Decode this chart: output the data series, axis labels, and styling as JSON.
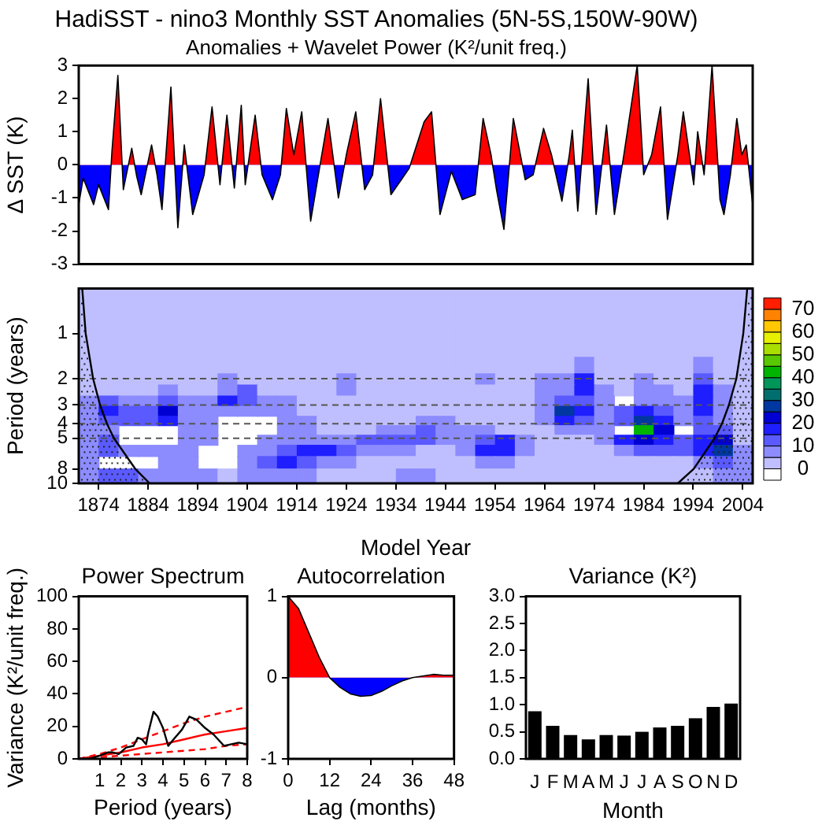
{
  "chart_data": [
    {
      "type": "area",
      "title": "HadiSST - nino3 Monthly SST Anomalies (5N-5S,150W-90W)",
      "subtitle": "Anomalies + Wavelet Power (K²/unit freq.)",
      "ylabel": "Δ SST (K)",
      "xlim": [
        1870,
        2006
      ],
      "ylim": [
        -3,
        3
      ],
      "yticks": [
        -3,
        -2,
        -1,
        0,
        1,
        2,
        3
      ],
      "tick_labels": "y",
      "x": [
        1870.0,
        1870.9,
        1873.0,
        1874.0,
        1876.0,
        1876.7,
        1877.9,
        1879.0,
        1880.7,
        1881.7,
        1882.6,
        1884.7,
        1885.8,
        1886.8,
        1888.6,
        1890.0,
        1891.3,
        1893.0,
        1895.3,
        1896.9,
        1898.5,
        1899.9,
        1901.4,
        1902.8,
        1903.6,
        1905.6,
        1907.0,
        1909.1,
        1910.7,
        1911.9,
        1913.4,
        1915.0,
        1916.8,
        1918.7,
        1920.3,
        1922.4,
        1924.0,
        1925.9,
        1927.7,
        1929.3,
        1930.9,
        1933.0,
        1935.1,
        1936.7,
        1939.7,
        1941.2,
        1942.9,
        1945.2,
        1947.4,
        1950.0,
        1951.6,
        1953.2,
        1954.3,
        1955.8,
        1957.7,
        1960.1,
        1961.7,
        1963.8,
        1965.4,
        1967.5,
        1969.0,
        1969.6,
        1970.7,
        1972.8,
        1974.4,
        1976.5,
        1978.1,
        1980.0,
        1982.7,
        1984.0,
        1985.6,
        1987.4,
        1988.8,
        1990.9,
        1992.0,
        1994.1,
        1994.9,
        1996.2,
        1997.8,
        1999.4,
        2000.2,
        2001.5,
        2002.8,
        2003.8,
        2004.7,
        2006.0
      ],
      "series": [
        {
          "color": "#000000",
          "values": [
            -1.2,
            -0.4,
            -1.2,
            -0.6,
            -1.35,
            0.4,
            2.7,
            -0.75,
            0.5,
            -0.35,
            -0.9,
            0.6,
            -0.3,
            -1.35,
            2.35,
            -1.9,
            0.6,
            -1.5,
            -0.3,
            1.75,
            -0.6,
            1.5,
            -0.7,
            1.8,
            -0.6,
            1.5,
            -0.3,
            -1.05,
            -0.3,
            1.7,
            0.3,
            1.6,
            -1.7,
            0,
            1.4,
            -1.0,
            0.3,
            1.6,
            -0.75,
            -0.3,
            2.0,
            -0.9,
            -0.45,
            -0.1,
            1.3,
            1.6,
            -1.5,
            -0.2,
            -1.05,
            -0.9,
            1.4,
            0.3,
            -0.75,
            -1.95,
            1.4,
            -0.45,
            -0.3,
            1.1,
            0.3,
            -1.1,
            0.3,
            1.05,
            -1.4,
            2.6,
            -1.5,
            1.2,
            -1.5,
            0.3,
            3.0,
            -0.3,
            0.3,
            1.75,
            -1.65,
            0.3,
            1.6,
            -0.6,
            1.0,
            -0.3,
            3.0,
            -1.05,
            -1.5,
            -0.3,
            1.4,
            0.3,
            0.6,
            -1.2
          ]
        }
      ]
    },
    {
      "type": "heatmap",
      "xlabel": "Model Year",
      "ylabel": "Period (years)",
      "clim": [
        -5,
        75
      ],
      "cticks": [
        0,
        10,
        20,
        30,
        40,
        50,
        60,
        70
      ],
      "xlim": [
        1870,
        2006
      ],
      "xticks": [
        1874,
        1884,
        1894,
        1904,
        1914,
        1924,
        1934,
        1944,
        1954,
        1964,
        1974,
        1984,
        1994,
        2004
      ],
      "ylim": [
        10,
        0.5
      ],
      "yticks": [
        1,
        2,
        3,
        4,
        5,
        8,
        10
      ],
      "log": "y",
      "x": [
        1872,
        1876,
        1880,
        1884,
        1888,
        1892,
        1896,
        1900,
        1904,
        1908,
        1912,
        1916,
        1920,
        1924,
        1928,
        1932,
        1936,
        1940,
        1944,
        1948,
        1952,
        1956,
        1960,
        1964,
        1968,
        1972,
        1976,
        1980,
        1984,
        1988,
        1992,
        1996,
        2000,
        2004
      ],
      "y": [
        0.7,
        1.2,
        1.7,
        2.0,
        2.4,
        2.8,
        3.3,
        3.8,
        4.4,
        5.1,
        6.0,
        7.2,
        8.8
      ],
      "cells": [
        [
          2,
          2,
          2,
          2,
          2,
          2,
          2,
          2,
          2,
          2,
          2,
          2,
          2,
          2,
          2,
          2,
          2,
          2,
          2,
          2,
          2,
          2,
          2,
          2,
          2,
          2,
          2,
          2,
          2,
          2,
          2,
          2,
          2,
          2
        ],
        [
          2,
          2,
          2,
          2,
          2,
          2,
          2,
          2,
          2,
          2,
          2,
          2,
          2,
          2,
          2,
          2,
          2,
          2,
          2,
          2,
          2,
          2,
          2,
          2,
          2,
          2,
          2,
          2,
          2,
          2,
          2,
          2,
          2,
          2
        ],
        [
          2,
          2,
          2,
          2,
          2,
          2,
          2,
          2,
          2,
          2,
          2,
          2,
          2,
          2,
          2,
          2,
          2,
          2,
          2,
          2,
          2,
          2,
          2,
          2,
          2,
          7,
          2,
          2,
          2,
          2,
          2,
          7,
          2,
          2
        ],
        [
          2,
          2,
          2,
          2,
          2,
          2,
          2,
          7,
          2,
          2,
          2,
          2,
          2,
          7,
          2,
          2,
          2,
          2,
          2,
          2,
          7,
          2,
          2,
          7,
          7,
          17,
          2,
          2,
          7,
          2,
          2,
          12,
          2,
          2
        ],
        [
          2,
          2,
          2,
          2,
          7,
          2,
          2,
          7,
          12,
          2,
          2,
          2,
          2,
          7,
          2,
          2,
          2,
          2,
          2,
          2,
          2,
          2,
          2,
          7,
          7,
          17,
          7,
          2,
          7,
          7,
          2,
          17,
          7,
          2
        ],
        [
          7,
          12,
          7,
          7,
          12,
          7,
          7,
          17,
          12,
          7,
          7,
          2,
          2,
          2,
          2,
          2,
          2,
          2,
          2,
          2,
          2,
          2,
          2,
          7,
          12,
          12,
          7,
          null,
          7,
          7,
          7,
          17,
          7,
          2
        ],
        [
          7,
          17,
          12,
          12,
          22,
          7,
          7,
          7,
          7,
          7,
          7,
          2,
          2,
          2,
          2,
          2,
          2,
          2,
          2,
          2,
          2,
          2,
          2,
          7,
          27,
          17,
          7,
          12,
          17,
          12,
          7,
          17,
          7,
          2
        ],
        [
          7,
          12,
          12,
          12,
          17,
          7,
          7,
          null,
          null,
          null,
          7,
          7,
          2,
          2,
          2,
          2,
          2,
          7,
          7,
          2,
          2,
          2,
          2,
          7,
          17,
          12,
          7,
          12,
          27,
          17,
          7,
          12,
          7,
          2
        ],
        [
          7,
          7,
          null,
          null,
          null,
          7,
          7,
          null,
          null,
          null,
          7,
          7,
          2,
          2,
          2,
          7,
          7,
          12,
          7,
          7,
          7,
          2,
          2,
          2,
          7,
          7,
          7,
          null,
          42,
          22,
          null,
          12,
          12,
          2
        ],
        [
          7,
          12,
          null,
          null,
          null,
          7,
          7,
          null,
          null,
          7,
          7,
          7,
          7,
          7,
          12,
          12,
          12,
          12,
          7,
          7,
          12,
          17,
          7,
          2,
          2,
          2,
          7,
          17,
          22,
          17,
          12,
          17,
          22,
          2
        ],
        [
          7,
          12,
          7,
          7,
          7,
          7,
          null,
          null,
          7,
          7,
          12,
          17,
          17,
          12,
          7,
          7,
          7,
          2,
          2,
          7,
          17,
          17,
          7,
          2,
          2,
          2,
          2,
          7,
          12,
          12,
          12,
          17,
          27,
          7
        ],
        [
          7,
          null,
          null,
          null,
          7,
          7,
          null,
          null,
          7,
          12,
          17,
          12,
          7,
          7,
          2,
          2,
          2,
          2,
          2,
          2,
          7,
          7,
          2,
          2,
          2,
          2,
          2,
          2,
          2,
          2,
          2,
          7,
          12,
          7
        ],
        [
          7,
          12,
          12,
          7,
          7,
          7,
          7,
          2,
          7,
          7,
          7,
          7,
          2,
          2,
          2,
          2,
          7,
          7,
          2,
          2,
          2,
          2,
          2,
          2,
          2,
          2,
          2,
          2,
          2,
          2,
          2,
          2,
          7,
          7
        ]
      ],
      "ref_lines": [
        {
          "axis": "y",
          "value": 2,
          "color": "#555555",
          "line_style": "dashed"
        },
        {
          "axis": "y",
          "value": 3,
          "color": "#555555",
          "line_style": "dashed"
        },
        {
          "axis": "y",
          "value": 4,
          "color": "#555555",
          "line_style": "dashed"
        },
        {
          "axis": "y",
          "value": 5,
          "color": "#555555",
          "line_style": "dashed"
        }
      ],
      "series": [
        {
          "type": "line",
          "color": "#000000",
          "x": [
            1870.7,
            1871.4,
            1872.9,
            1874.3,
            1875.7,
            1877.1,
            1881.4,
            1884.3
          ],
          "values": [
            0.5,
            1,
            2,
            3,
            4,
            5,
            8,
            10
          ]
        },
        {
          "type": "line",
          "color": "#000000",
          "x": [
            2004.9,
            2004.1,
            2002.7,
            2001.2,
            1999.8,
            1998.3,
            1994.1,
            1990.9
          ],
          "values": [
            0.5,
            1,
            2,
            3,
            4,
            5,
            8,
            10
          ]
        }
      ]
    },
    {
      "type": "line",
      "title": "Power Spectrum",
      "xlabel": "Period (years)",
      "ylabel": "Variance (K²/unit freq.)",
      "xlim": [
        0,
        8
      ],
      "xticks": [
        1,
        2,
        3,
        4,
        5,
        6,
        7,
        8
      ],
      "ylim": [
        0,
        100
      ],
      "yticks": [
        0,
        20,
        40,
        60,
        80,
        100
      ],
      "series": [
        {
          "color": "#000000",
          "line_style": "solid",
          "x": [
            0,
            0.5,
            1,
            1.4,
            1.6,
            1.9,
            2.25,
            2.6,
            2.8,
            3.0,
            3.2,
            3.3,
            3.55,
            3.75,
            4.0,
            4.25,
            4.5,
            4.9,
            5.25,
            5.6,
            6.0,
            6.4,
            6.9,
            7.25,
            7.6,
            8
          ],
          "values": [
            0,
            0,
            2,
            4,
            4,
            3,
            7,
            8,
            13,
            12,
            9,
            16,
            29,
            26,
            19,
            8,
            12,
            18,
            26,
            24,
            19,
            15,
            8,
            9,
            10,
            9
          ]
        },
        {
          "color": "#ff0000",
          "line_style": "solid",
          "x": [
            0,
            1,
            2,
            3,
            4,
            5,
            6,
            7,
            8
          ],
          "values": [
            0,
            2,
            4,
            7,
            9,
            12,
            15,
            17,
            19
          ]
        },
        {
          "color": "#ff0000",
          "line_style": "dashed",
          "x": [
            0,
            1,
            2,
            3,
            4,
            5,
            6,
            7,
            8
          ],
          "values": [
            0,
            3,
            7,
            12,
            17,
            22,
            26,
            29,
            32
          ]
        },
        {
          "color": "#ff0000",
          "line_style": "dashed",
          "x": [
            0,
            1,
            2,
            3,
            4,
            5,
            6,
            7,
            8
          ],
          "values": [
            0,
            1,
            2,
            3,
            4,
            5,
            6,
            8,
            9
          ]
        }
      ]
    },
    {
      "type": "area",
      "title": "Autocorrelation",
      "xlabel": "Lag (months)",
      "xlim": [
        0,
        48
      ],
      "xticks": [
        0,
        12,
        24,
        36,
        48
      ],
      "ylim": [
        -1,
        1
      ],
      "yticks": [
        -1,
        0,
        1
      ],
      "x": [
        0,
        3,
        6,
        9,
        12,
        15,
        18,
        21,
        24,
        27,
        30,
        33,
        36,
        39,
        42,
        45,
        48
      ],
      "series": [
        {
          "color": "#000000",
          "values": [
            1,
            0.85,
            0.55,
            0.25,
            0,
            -0.12,
            -0.2,
            -0.23,
            -0.22,
            -0.17,
            -0.1,
            -0.04,
            0,
            0.02,
            0.04,
            0.03,
            0.03
          ]
        }
      ]
    },
    {
      "type": "bar",
      "title": "Variance (K²)",
      "xlabel": "Month",
      "categories": [
        "J",
        "F",
        "M",
        "A",
        "M",
        "J",
        "J",
        "A",
        "S",
        "O",
        "N",
        "D"
      ],
      "values": [
        0.88,
        0.61,
        0.44,
        0.36,
        0.44,
        0.43,
        0.5,
        0.58,
        0.61,
        0.75,
        0.96,
        1.02
      ],
      "color": "#000000",
      "ylim": [
        0,
        3
      ],
      "yticks": [
        {
          "value": 0,
          "label": "0.0"
        },
        {
          "value": 0.5,
          "label": "0.5"
        },
        {
          "value": 1,
          "label": "1.0"
        },
        {
          "value": 1.5,
          "label": "1.5"
        },
        {
          "value": 2,
          "label": "2.0"
        },
        {
          "value": 2.5,
          "label": "2.5"
        },
        {
          "value": 3,
          "label": "3.0"
        }
      ]
    }
  ]
}
